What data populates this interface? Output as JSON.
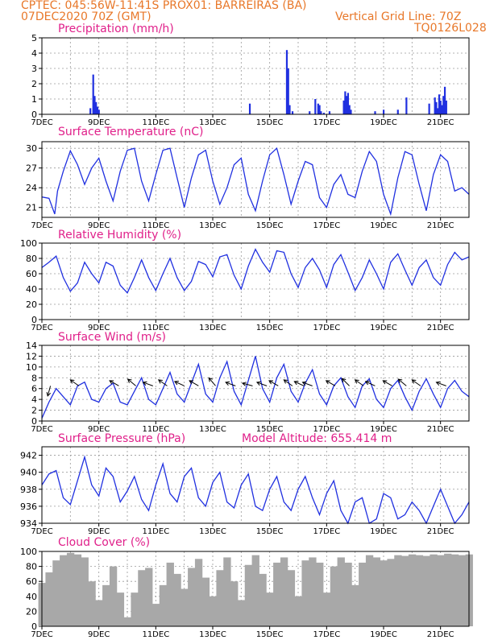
{
  "header": {
    "line1": "CPTEC:   045:56W-11:41S   PROX01: BARREIRAS (BA)",
    "line2_left": "07DEC2020 70Z (GMT)",
    "line2_right": "Vertical Grid Line: 70Z",
    "line3_right": "TQ0126L028"
  },
  "colors": {
    "title": "#e0208a",
    "header": "#e8782a",
    "line": "#2030e0",
    "bar": "#2030e0",
    "cloud": "#a8a8a8",
    "grid": "#9a9a9a"
  },
  "chart_data": [
    {
      "type": "bar",
      "title": "Precipitation (mm/h)",
      "ylim": [
        0,
        5
      ],
      "yticks": [
        0,
        1,
        2,
        3,
        4,
        5
      ],
      "x_ticks": [
        "7DEC",
        "9DEC",
        "11DEC",
        "13DEC",
        "15DEC",
        "17DEC",
        "19DEC",
        "21DEC"
      ],
      "grid": true,
      "x_days": [
        1.7,
        1.8,
        1.85,
        1.9,
        1.95,
        2.0,
        7.3,
        8.6,
        8.65,
        8.7,
        8.8,
        9.4,
        9.6,
        9.7,
        9.75,
        9.8,
        9.9,
        10.1,
        10.6,
        10.65,
        10.7,
        10.75,
        10.8,
        10.85,
        11.7,
        12.0,
        12.5,
        12.8,
        13.6,
        13.8,
        13.85,
        13.9,
        13.95,
        14.0,
        14.05,
        14.1,
        14.15,
        14.2
      ],
      "values": [
        0.4,
        2.6,
        1.2,
        0.8,
        0.5,
        0.3,
        0.7,
        4.2,
        3.0,
        0.6,
        0.2,
        0.2,
        1.0,
        0.7,
        0.6,
        0.2,
        0.1,
        0.2,
        0.9,
        1.5,
        1.2,
        1.4,
        0.6,
        0.3,
        0.2,
        0.3,
        0.3,
        1.1,
        0.7,
        1.1,
        0.8,
        0.4,
        1.3,
        0.9,
        0.6,
        1.2,
        1.8,
        0.9
      ]
    },
    {
      "type": "line",
      "title": "Surface Temperature (nC)",
      "ylim": [
        19.5,
        31
      ],
      "yticks": [
        21,
        24,
        27,
        30
      ],
      "x_ticks": [
        "7DEC",
        "9DEC",
        "11DEC",
        "13DEC",
        "15DEC",
        "17DEC",
        "19DEC",
        "21DEC"
      ],
      "grid": true,
      "x_days": [
        0.0,
        0.25,
        0.45,
        0.55,
        0.75,
        1.0,
        1.25,
        1.5,
        1.75,
        2.0,
        2.25,
        2.5,
        2.75,
        3.0,
        3.25,
        3.5,
        3.75,
        4.0,
        4.25,
        4.5,
        4.75,
        5.0,
        5.25,
        5.5,
        5.75,
        6.0,
        6.25,
        6.5,
        6.75,
        7.0,
        7.25,
        7.5,
        7.75,
        8.0,
        8.25,
        8.5,
        8.75,
        9.0,
        9.25,
        9.5,
        9.75,
        10.0,
        10.25,
        10.5,
        10.75,
        11.0,
        11.25,
        11.5,
        11.75,
        12.0,
        12.25,
        12.5,
        12.75,
        13.0,
        13.25,
        13.5,
        13.75,
        14.0,
        14.25,
        14.5,
        14.75,
        15.0
      ],
      "values": [
        22.6,
        22.4,
        20.0,
        23.5,
        26.5,
        29.6,
        27.5,
        24.5,
        27.0,
        28.5,
        25.0,
        22.0,
        26.5,
        29.7,
        30.0,
        25.0,
        22.0,
        26.0,
        29.7,
        30.0,
        25.5,
        21.0,
        25.5,
        29.0,
        29.7,
        25.0,
        21.5,
        24.0,
        27.5,
        28.5,
        23.0,
        20.5,
        25.0,
        29.0,
        30.0,
        26.0,
        21.5,
        25.0,
        28.0,
        27.5,
        22.5,
        21.0,
        24.5,
        26.0,
        23.0,
        22.5,
        26.5,
        29.5,
        28.0,
        23.0,
        20.0,
        25.5,
        29.5,
        29.0,
        24.5,
        20.5,
        26.0,
        29.0,
        28.0,
        23.5,
        24.0,
        23.0
      ]
    },
    {
      "type": "line",
      "title": "Relative Humidity (%)",
      "ylim": [
        0,
        100
      ],
      "yticks": [
        0,
        20,
        40,
        60,
        80,
        100
      ],
      "x_ticks": [
        "7DEC",
        "9DEC",
        "11DEC",
        "13DEC",
        "15DEC",
        "17DEC",
        "19DEC",
        "21DEC"
      ],
      "grid": true,
      "x_days": [
        0.0,
        0.25,
        0.5,
        0.75,
        1.0,
        1.25,
        1.5,
        1.75,
        2.0,
        2.25,
        2.5,
        2.75,
        3.0,
        3.25,
        3.5,
        3.75,
        4.0,
        4.25,
        4.5,
        4.75,
        5.0,
        5.25,
        5.5,
        5.75,
        6.0,
        6.25,
        6.5,
        6.75,
        7.0,
        7.25,
        7.5,
        7.75,
        8.0,
        8.25,
        8.5,
        8.75,
        9.0,
        9.25,
        9.5,
        9.75,
        10.0,
        10.25,
        10.5,
        10.75,
        11.0,
        11.25,
        11.5,
        11.75,
        12.0,
        12.25,
        12.5,
        12.75,
        13.0,
        13.25,
        13.5,
        13.75,
        14.0,
        14.25,
        14.5,
        14.75,
        15.0
      ],
      "values": [
        68,
        75,
        83,
        55,
        37,
        48,
        75,
        60,
        48,
        75,
        70,
        45,
        35,
        55,
        78,
        55,
        38,
        60,
        80,
        55,
        38,
        50,
        76,
        72,
        56,
        82,
        85,
        58,
        40,
        70,
        92,
        75,
        62,
        90,
        88,
        60,
        42,
        68,
        80,
        65,
        42,
        72,
        85,
        62,
        38,
        55,
        78,
        60,
        40,
        75,
        86,
        65,
        45,
        68,
        78,
        55,
        45,
        72,
        88,
        78,
        82
      ]
    },
    {
      "type": "line",
      "title": "Surface Wind (m/s)",
      "ylim": [
        0,
        14
      ],
      "yticks": [
        0,
        2,
        4,
        6,
        8,
        10,
        12,
        14
      ],
      "x_ticks": [
        "7DEC",
        "9DEC",
        "11DEC",
        "13DEC",
        "15DEC",
        "17DEC",
        "19DEC",
        "21DEC"
      ],
      "grid": true,
      "x_days": [
        0.0,
        0.25,
        0.5,
        0.75,
        1.0,
        1.25,
        1.5,
        1.75,
        2.0,
        2.25,
        2.5,
        2.75,
        3.0,
        3.25,
        3.5,
        3.75,
        4.0,
        4.25,
        4.5,
        4.75,
        5.0,
        5.25,
        5.5,
        5.75,
        6.0,
        6.25,
        6.5,
        6.75,
        7.0,
        7.25,
        7.5,
        7.75,
        8.0,
        8.25,
        8.5,
        8.75,
        9.0,
        9.25,
        9.5,
        9.75,
        10.0,
        10.25,
        10.5,
        10.75,
        11.0,
        11.25,
        11.5,
        11.75,
        12.0,
        12.25,
        12.5,
        12.75,
        13.0,
        13.25,
        13.5,
        13.75,
        14.0,
        14.25,
        14.5,
        14.75,
        15.0
      ],
      "values": [
        0.5,
        3.5,
        6.0,
        4.5,
        3.0,
        6.5,
        7.2,
        4.0,
        3.5,
        6.0,
        7.0,
        3.5,
        3.0,
        5.5,
        8.0,
        4.0,
        3.0,
        6.0,
        9.0,
        5.0,
        3.5,
        7.0,
        10.5,
        5.0,
        3.5,
        8.0,
        11.0,
        5.5,
        3.0,
        7.5,
        12.0,
        6.0,
        3.5,
        8.0,
        10.5,
        5.5,
        3.5,
        7.0,
        9.5,
        5.0,
        3.0,
        6.5,
        8.0,
        4.5,
        2.5,
        6.5,
        7.8,
        4.0,
        2.5,
        6.0,
        7.5,
        4.5,
        2.0,
        5.5,
        7.8,
        5.0,
        2.5,
        6.0,
        7.5,
        5.5,
        4.5
      ],
      "arrows_x_days": [
        0.3,
        1.3,
        2.7,
        3.3,
        3.9,
        4.4,
        5.0,
        5.5,
        6.1,
        6.8,
        7.4,
        7.9,
        8.3,
        8.8,
        9.2,
        9.5,
        10.3,
        10.8,
        11.3,
        11.7,
        12.3,
        12.8,
        13.3,
        14.2
      ],
      "arrows_dir_deg": [
        105,
        215,
        210,
        220,
        200,
        215,
        205,
        210,
        230,
        200,
        195,
        200,
        210,
        215,
        205,
        200,
        210,
        225,
        215,
        205,
        210,
        220,
        215,
        200
      ]
    },
    {
      "type": "line",
      "title": "Surface Pressure (hPa)",
      "annotation": "Model Altitude: 655.414 m",
      "ylim": [
        934,
        943
      ],
      "yticks": [
        934,
        936,
        938,
        940,
        942
      ],
      "x_ticks": [
        "7DEC",
        "9DEC",
        "11DEC",
        "13DEC",
        "15DEC",
        "17DEC",
        "19DEC",
        "21DEC"
      ],
      "grid": true,
      "x_days": [
        0.0,
        0.25,
        0.5,
        0.75,
        1.0,
        1.25,
        1.5,
        1.75,
        2.0,
        2.25,
        2.5,
        2.75,
        3.0,
        3.25,
        3.5,
        3.75,
        4.0,
        4.25,
        4.5,
        4.75,
        5.0,
        5.25,
        5.5,
        5.75,
        6.0,
        6.25,
        6.5,
        6.75,
        7.0,
        7.25,
        7.5,
        7.75,
        8.0,
        8.25,
        8.5,
        8.75,
        9.0,
        9.25,
        9.5,
        9.75,
        10.0,
        10.25,
        10.5,
        10.75,
        11.0,
        11.25,
        11.5,
        11.75,
        12.0,
        12.25,
        12.5,
        12.75,
        13.0,
        13.25,
        13.5,
        13.75,
        14.0,
        14.25,
        14.5,
        14.75,
        15.0
      ],
      "values": [
        938.5,
        939.8,
        940.2,
        937.0,
        936.2,
        939.0,
        941.8,
        938.5,
        937.2,
        940.5,
        939.5,
        936.5,
        937.8,
        939.5,
        936.8,
        935.5,
        938.5,
        941.0,
        937.5,
        936.5,
        939.5,
        940.5,
        937.0,
        936.0,
        938.8,
        940.0,
        936.5,
        935.8,
        938.5,
        939.8,
        936.0,
        935.5,
        938.0,
        939.5,
        936.5,
        935.5,
        938.0,
        939.5,
        937.0,
        935.0,
        937.5,
        939.0,
        935.5,
        934.0,
        936.5,
        937.0,
        934.0,
        934.5,
        937.5,
        937.0,
        934.5,
        935.0,
        936.5,
        935.5,
        934.0,
        936.0,
        938.0,
        936.0,
        934.0,
        935.0,
        936.5
      ]
    },
    {
      "type": "bar",
      "title": "Cloud Cover (%)",
      "ylim": [
        0,
        100
      ],
      "yticks": [
        0,
        20,
        40,
        60,
        80,
        100
      ],
      "x_ticks": [
        "7DEC",
        "9DEC",
        "11DEC",
        "13DEC",
        "15DEC",
        "17DEC",
        "19DEC",
        "21DEC"
      ],
      "grid": true,
      "x_days": [
        0.0,
        0.25,
        0.5,
        0.75,
        1.0,
        1.25,
        1.5,
        1.75,
        2.0,
        2.25,
        2.5,
        2.75,
        3.0,
        3.25,
        3.5,
        3.75,
        4.0,
        4.25,
        4.5,
        4.75,
        5.0,
        5.25,
        5.5,
        5.75,
        6.0,
        6.25,
        6.5,
        6.75,
        7.0,
        7.25,
        7.5,
        7.75,
        8.0,
        8.25,
        8.5,
        8.75,
        9.0,
        9.25,
        9.5,
        9.75,
        10.0,
        10.25,
        10.5,
        10.75,
        11.0,
        11.25,
        11.5,
        11.75,
        12.0,
        12.25,
        12.5,
        12.75,
        13.0,
        13.25,
        13.5,
        13.75,
        14.0,
        14.25,
        14.5,
        14.75,
        15.0
      ],
      "values": [
        58,
        72,
        88,
        95,
        98,
        96,
        92,
        60,
        35,
        55,
        80,
        45,
        12,
        45,
        75,
        78,
        30,
        55,
        85,
        70,
        50,
        78,
        90,
        65,
        40,
        75,
        92,
        60,
        35,
        82,
        95,
        70,
        45,
        85,
        92,
        75,
        40,
        88,
        92,
        85,
        45,
        80,
        92,
        85,
        55,
        85,
        95,
        92,
        88,
        90,
        95,
        94,
        96,
        95,
        94,
        96,
        95,
        97,
        96,
        95,
        96
      ]
    }
  ],
  "panels": [
    {
      "title": "Precipitation (mm/h)"
    },
    {
      "title": "Surface Temperature (nC)"
    },
    {
      "title": "Relative Humidity (%)"
    },
    {
      "title": "Surface Wind (m/s)"
    },
    {
      "title": "Surface Pressure (hPa)",
      "note": "Model Altitude: 655.414 m"
    },
    {
      "title": "Cloud Cover (%)"
    }
  ]
}
